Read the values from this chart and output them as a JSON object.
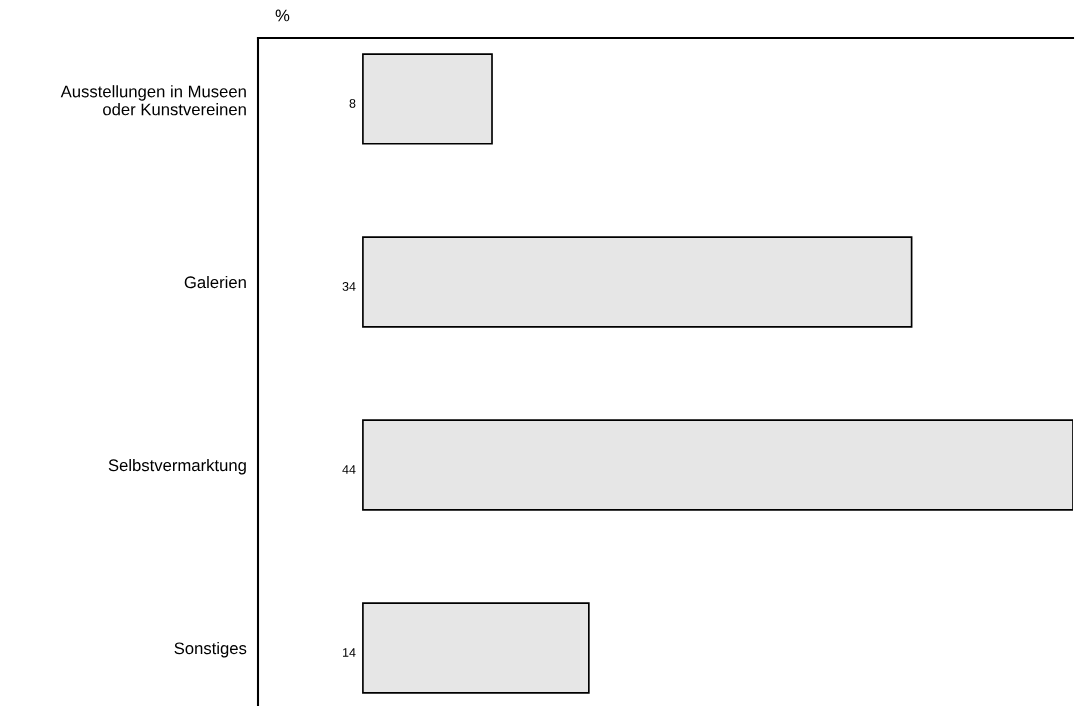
{
  "chart_data": {
    "type": "bar",
    "orientation": "horizontal",
    "xlabel": "%",
    "categories": [
      "Ausstellungen in Museen\noder Kunstvereinen",
      "Galerien",
      "Selbstvermarktung",
      "Sonstiges"
    ],
    "values": [
      8,
      34,
      44,
      14
    ],
    "color": "#e6e6e6",
    "xlim": [
      -6.5,
      44
    ],
    "data_labels": true,
    "grid": false,
    "legend": false
  }
}
